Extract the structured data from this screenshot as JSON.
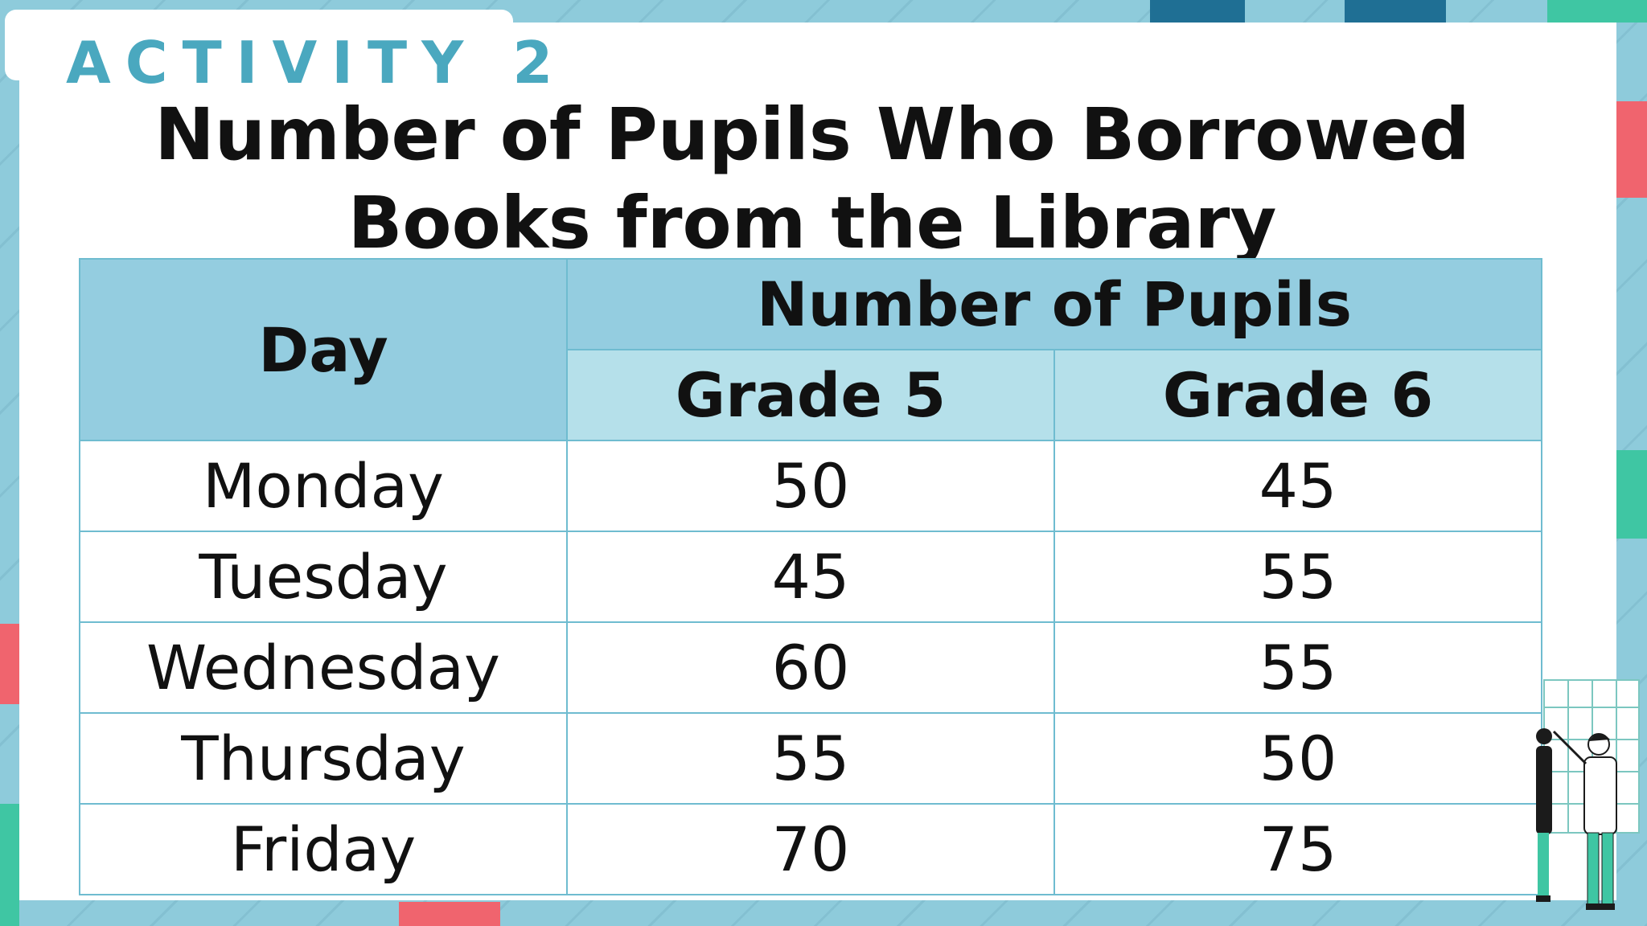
{
  "slide": {
    "activity_label": "ACTIVITY 2",
    "title_line1": "Number of Pupils Who Borrowed",
    "title_line2": "Books from the Library"
  },
  "table": {
    "day_header": "Day",
    "group_header": "Number of Pupils",
    "grade_headers": [
      "Grade 5",
      "Grade 6"
    ],
    "rows": [
      {
        "day": "Monday",
        "grade5": "50",
        "grade6": "45"
      },
      {
        "day": "Tuesday",
        "grade5": "45",
        "grade6": "55"
      },
      {
        "day": "Wednesday",
        "grade5": "60",
        "grade6": "55"
      },
      {
        "day": "Thursday",
        "grade5": "55",
        "grade6": "50"
      },
      {
        "day": "Friday",
        "grade5": "70",
        "grade6": "75"
      }
    ]
  },
  "colors": {
    "background": "#8ecbdb",
    "header_dark": "#94cde0",
    "header_light": "#b5e0ea",
    "accent_teal": "#4aa8bf",
    "accent_coral": "#f0646e",
    "accent_green": "#3fc6a3",
    "accent_navy": "#1f6f94"
  },
  "icons": [
    "people-at-board-illustration"
  ]
}
